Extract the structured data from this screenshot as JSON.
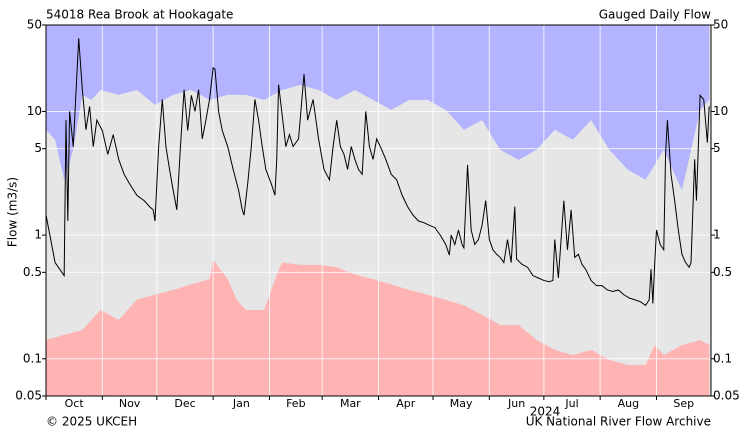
{
  "chart_data": {
    "type": "line",
    "title": "54018 Rea Brook at Hookagate",
    "subtitle": "Gauged Daily Flow",
    "ylabel": "Flow (m3/s)",
    "year_label": "2024",
    "footer_left": "© 2025 UKCEH",
    "footer_right": "UK National River Flow Archive",
    "log_y": true,
    "grid": true,
    "background": "#e6e6e6",
    "ylim": [
      0.05,
      50
    ],
    "yticks": [
      0.05,
      0.1,
      0.5,
      1,
      5,
      10,
      50
    ],
    "xlim": [
      0,
      366
    ],
    "xticks": [
      {
        "value": 0,
        "label": "Oct"
      },
      {
        "value": 31,
        "label": "Nov"
      },
      {
        "value": 61,
        "label": "Dec"
      },
      {
        "value": 92,
        "label": "Jan"
      },
      {
        "value": 123,
        "label": "Feb"
      },
      {
        "value": 152,
        "label": "Mar"
      },
      {
        "value": 183,
        "label": "Apr"
      },
      {
        "value": 213,
        "label": "May"
      },
      {
        "value": 244,
        "label": "Jun"
      },
      {
        "value": 274,
        "label": "Jul"
      },
      {
        "value": 305,
        "label": "Aug"
      },
      {
        "value": 336,
        "label": "Sep"
      }
    ],
    "max_band": {
      "color": "#b3b3ff",
      "x": [
        0,
        5,
        10,
        15,
        20,
        25,
        30,
        40,
        50,
        60,
        70,
        80,
        90,
        100,
        110,
        120,
        130,
        140,
        150,
        160,
        170,
        180,
        190,
        200,
        210,
        220,
        230,
        240,
        250,
        260,
        270,
        280,
        290,
        300,
        310,
        320,
        330,
        340,
        350,
        360,
        365
      ],
      "values": [
        7.1,
        5.9,
        2.8,
        4.9,
        13.6,
        12.4,
        14.9,
        13.6,
        14.9,
        11.3,
        13.6,
        14.9,
        12.4,
        13.6,
        13.6,
        12.4,
        14.9,
        16.4,
        14.9,
        12.4,
        14.9,
        12.4,
        10.3,
        12.4,
        12.4,
        10.3,
        7.1,
        8.5,
        4.9,
        4.05,
        4.9,
        7.1,
        5.9,
        8.5,
        4.9,
        3.4,
        2.8,
        4.9,
        2.3,
        10.3,
        12.4
      ]
    },
    "min_band": {
      "color": "#ffb3b3",
      "x": [
        0,
        10,
        20,
        25,
        30,
        40,
        50,
        60,
        70,
        80,
        90,
        92,
        100,
        105,
        110,
        120,
        128,
        130,
        140,
        150,
        160,
        170,
        180,
        190,
        200,
        210,
        220,
        230,
        240,
        250,
        260,
        270,
        280,
        290,
        300,
        310,
        320,
        330,
        335,
        340,
        350,
        360,
        365
      ],
      "values": [
        0.142,
        0.156,
        0.171,
        0.206,
        0.248,
        0.206,
        0.3,
        0.33,
        0.36,
        0.4,
        0.44,
        0.63,
        0.44,
        0.3,
        0.248,
        0.248,
        0.52,
        0.6,
        0.574,
        0.574,
        0.55,
        0.48,
        0.44,
        0.4,
        0.36,
        0.33,
        0.3,
        0.27,
        0.226,
        0.188,
        0.188,
        0.142,
        0.118,
        0.107,
        0.118,
        0.098,
        0.089,
        0.089,
        0.129,
        0.107,
        0.129,
        0.142,
        0.129
      ]
    },
    "flow": {
      "color": "#000000",
      "x": [
        0,
        5,
        10,
        11,
        12,
        13,
        15,
        18,
        20,
        22,
        24,
        26,
        28,
        31,
        34,
        37,
        40,
        43,
        46,
        50,
        54,
        57,
        59,
        60,
        62,
        64,
        66,
        68,
        70,
        72,
        74,
        76,
        78,
        80,
        82,
        84,
        86,
        88,
        90,
        92,
        93,
        95,
        97,
        100,
        103,
        106,
        108,
        109,
        111,
        113,
        115,
        117,
        119,
        121,
        124,
        126,
        127,
        128,
        130,
        132,
        134,
        136,
        139,
        142,
        144,
        147,
        150,
        153,
        156,
        158,
        160,
        162,
        164,
        166,
        168,
        170,
        172,
        174,
        176,
        178,
        180,
        182,
        184,
        187,
        190,
        193,
        196,
        199,
        202,
        205,
        208,
        211,
        214,
        217,
        220,
        222,
        223,
        225,
        227,
        229,
        230,
        232,
        234,
        236,
        238,
        240,
        242,
        244,
        246,
        248,
        250,
        252,
        254,
        256,
        258,
        259,
        262,
        265,
        268,
        271,
        274,
        277,
        279,
        280,
        282,
        285,
        287,
        289,
        291,
        293,
        295,
        297,
        300,
        303,
        306,
        309,
        312,
        315,
        318,
        321,
        324,
        327,
        330,
        332,
        333,
        334,
        335,
        336,
        338,
        340,
        341,
        342,
        344,
        346,
        348,
        350,
        352,
        354,
        355,
        357,
        358,
        360,
        362,
        364,
        365
      ],
      "values": [
        1.46,
        0.6,
        0.47,
        8.5,
        1.3,
        10,
        5.2,
        39,
        15,
        7.1,
        11,
        5.2,
        8.5,
        7,
        4.5,
        6.5,
        4.1,
        3.1,
        2.6,
        2.1,
        1.9,
        1.7,
        1.6,
        1.3,
        5.2,
        12.5,
        5.2,
        3.4,
        2.3,
        1.6,
        5.2,
        15,
        7,
        13.5,
        10,
        15,
        6,
        8.5,
        12.5,
        22.5,
        22,
        10,
        7,
        5.2,
        3.4,
        2.3,
        1.6,
        1.45,
        2.6,
        5.2,
        12.5,
        8.5,
        5.2,
        3.4,
        2.6,
        2.1,
        4.1,
        16.5,
        9.3,
        5.2,
        6.5,
        5.2,
        6,
        20,
        8.5,
        12.5,
        6,
        3.4,
        2.8,
        5.2,
        8.5,
        5.2,
        4.5,
        3.4,
        5.2,
        4.1,
        3.4,
        3.1,
        10,
        5.2,
        4.1,
        6,
        5.2,
        4.1,
        3.1,
        2.8,
        2.1,
        1.7,
        1.45,
        1.3,
        1.26,
        1.2,
        1.15,
        1.0,
        0.84,
        0.69,
        1.0,
        0.84,
        1.1,
        0.84,
        0.79,
        3.7,
        1.1,
        0.84,
        0.92,
        1.2,
        1.9,
        0.92,
        0.76,
        0.7,
        0.66,
        0.6,
        0.92,
        0.6,
        1.7,
        0.64,
        0.58,
        0.55,
        0.47,
        0.45,
        0.43,
        0.42,
        0.43,
        0.92,
        0.45,
        1.9,
        0.76,
        1.6,
        0.66,
        0.7,
        0.58,
        0.53,
        0.43,
        0.39,
        0.39,
        0.36,
        0.35,
        0.36,
        0.33,
        0.31,
        0.3,
        0.29,
        0.27,
        0.3,
        0.53,
        0.28,
        0.58,
        1.1,
        0.84,
        0.76,
        4.5,
        8.5,
        3.1,
        1.9,
        1.1,
        0.7,
        0.6,
        0.55,
        0.6,
        4.1,
        1.9,
        13.5,
        12.5,
        5.6,
        11
      ]
    }
  }
}
